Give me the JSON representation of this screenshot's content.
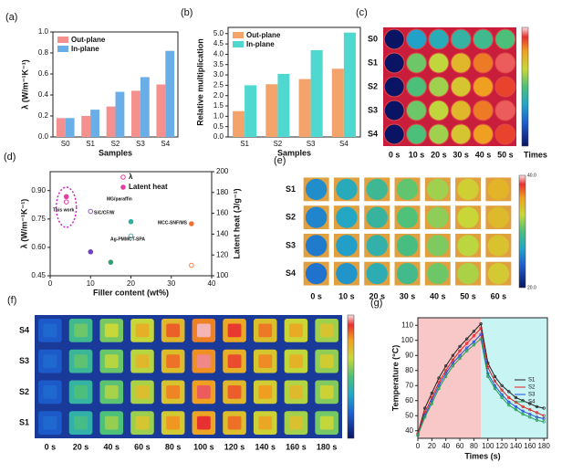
{
  "chart_data": [
    {
      "type": "bar",
      "panel": "(a)",
      "ylabel": "λ (W/m⁻¹K⁻¹)",
      "xlabel": "Samples",
      "categories": [
        "S0",
        "S1",
        "S2",
        "S3",
        "S4"
      ],
      "series": [
        {
          "name": "Out-plane",
          "color": "#f4908e",
          "values": [
            0.18,
            0.2,
            0.29,
            0.44,
            0.5
          ]
        },
        {
          "name": "In-plane",
          "color": "#6aaee8",
          "values": [
            0.18,
            0.26,
            0.43,
            0.57,
            0.82
          ]
        }
      ],
      "ylim": [
        0,
        1.0
      ],
      "yticks": [
        {
          "value": 0,
          "label": "0.0"
        },
        0.2,
        0.4,
        0.6,
        0.8,
        {
          "value": 1,
          "label": "1.0"
        }
      ]
    },
    {
      "type": "bar",
      "panel": "(b)",
      "ylabel": "Relative multiplication",
      "xlabel": "Samples",
      "categories": [
        "S1",
        "S2",
        "S3",
        "S4"
      ],
      "series": [
        {
          "name": "Out-plane",
          "color": "#f4a36a",
          "values": [
            1.25,
            2.55,
            2.8,
            3.3
          ]
        },
        {
          "name": "In-plane",
          "color": "#4fd8d0",
          "values": [
            2.5,
            3.05,
            4.2,
            5.05
          ]
        }
      ],
      "ylim": [
        0,
        5.3
      ],
      "yticks": [
        {
          "value": 0,
          "label": "0.0"
        },
        0.5,
        {
          "value": 1,
          "label": "1.0"
        },
        1.5,
        {
          "value": 2,
          "label": "2.0"
        },
        2.5,
        {
          "value": 3,
          "label": "3.0"
        },
        3.5,
        {
          "value": 4,
          "label": "4.0"
        },
        4.5,
        {
          "value": 5,
          "label": "5.0"
        }
      ]
    },
    {
      "type": "thermal-image",
      "panel": "(c)",
      "rows": [
        "S0",
        "S1",
        "S2",
        "S3",
        "S4"
      ],
      "columns": [
        "0 s",
        "10 s",
        "20 s",
        "30 s",
        "40 s",
        "50 s"
      ],
      "xlabel": "Times"
    },
    {
      "type": "scatter",
      "panel": "(d)",
      "xlabel": "Filler content (wt%)",
      "ylabel": "λ (W/m⁻¹K⁻¹)",
      "y2label": "Latent heat (J/g⁻¹)",
      "xlim": [
        0,
        40
      ],
      "xticks": [
        0,
        10,
        20,
        30,
        40
      ],
      "ylim": [
        0.45,
        1.0
      ],
      "yticks": [
        0.45,
        {
          "value": 0.6,
          "label": "0.60"
        },
        0.75,
        {
          "value": 0.9,
          "label": "0.90"
        }
      ],
      "y2lim": [
        100,
        200
      ],
      "y2ticks": [
        100,
        120,
        140,
        160,
        180,
        200
      ],
      "series": [
        {
          "name": "λ",
          "colors": [
            "#e040a0",
            "#9060d0",
            "#40b8c0",
            "#f08040"
          ],
          "x": [
            4,
            10,
            20,
            35
          ],
          "values": [
            0.84,
            0.79,
            0.66,
            0.505
          ]
        },
        {
          "name": "Latent heat",
          "axis": "y2",
          "colors": [
            "#e040a0",
            "#7040c0",
            "#30a070",
            "#30b0a0",
            "#f07030"
          ],
          "x": [
            4,
            10,
            15,
            20,
            35
          ],
          "values": [
            176,
            123,
            113,
            152,
            150
          ]
        }
      ],
      "annotations": [
        "This work",
        "MG/paraffin",
        "SiC/CF/W",
        "Ag-PMMCT-SPA",
        "MCC-SNF/MS"
      ]
    },
    {
      "type": "thermal-image",
      "panel": "(e)",
      "rows": [
        "S1",
        "S2",
        "S3",
        "S4"
      ],
      "columns": [
        "0 s",
        "10 s",
        "20 s",
        "30 s",
        "40 s",
        "50 s",
        "60 s"
      ],
      "colorbar": [
        "40.0",
        "20.0"
      ]
    },
    {
      "type": "thermal-image",
      "panel": "(f)",
      "rows": [
        "S4",
        "S3",
        "S2",
        "S1"
      ],
      "columns": [
        "0 s",
        "20 s",
        "40 s",
        "60 s",
        "80 s",
        "100 s",
        "120 s",
        "140 s",
        "160 s",
        "180 s"
      ]
    },
    {
      "type": "line",
      "panel": "(g)",
      "xlabel": "Times (s)",
      "ylabel": "Temperature (°C)",
      "x": [
        0,
        10,
        20,
        30,
        40,
        50,
        60,
        70,
        80,
        90,
        100,
        110,
        120,
        130,
        140,
        150,
        160,
        170,
        180
      ],
      "series": [
        {
          "name": "S1",
          "color": "#222222",
          "values": [
            38,
            55,
            65,
            75,
            83,
            90,
            96,
            101,
            106,
            111,
            85,
            76,
            70,
            66,
            62,
            60,
            58,
            56,
            55
          ]
        },
        {
          "name": "S2",
          "color": "#e02020",
          "values": [
            38,
            52,
            62,
            72,
            80,
            87,
            93,
            98,
            103,
            108,
            82,
            73,
            67,
            62,
            59,
            56,
            54,
            52,
            50
          ]
        },
        {
          "name": "S3",
          "color": "#2050e0",
          "values": [
            37,
            50,
            60,
            70,
            78,
            85,
            90,
            95,
            99,
            104,
            78,
            70,
            64,
            59,
            56,
            53,
            51,
            49,
            48
          ]
        },
        {
          "name": "S4",
          "color": "#20a050",
          "values": [
            37,
            49,
            58,
            68,
            76,
            83,
            88,
            93,
            97,
            101,
            76,
            68,
            62,
            57,
            54,
            51,
            49,
            47,
            46
          ]
        }
      ],
      "xlim": [
        0,
        185
      ],
      "xticks": [
        0,
        20,
        40,
        60,
        80,
        100,
        120,
        140,
        160,
        180
      ],
      "ylim": [
        35,
        115
      ],
      "yticks": [
        40,
        50,
        60,
        70,
        80,
        90,
        100,
        110
      ]
    }
  ]
}
